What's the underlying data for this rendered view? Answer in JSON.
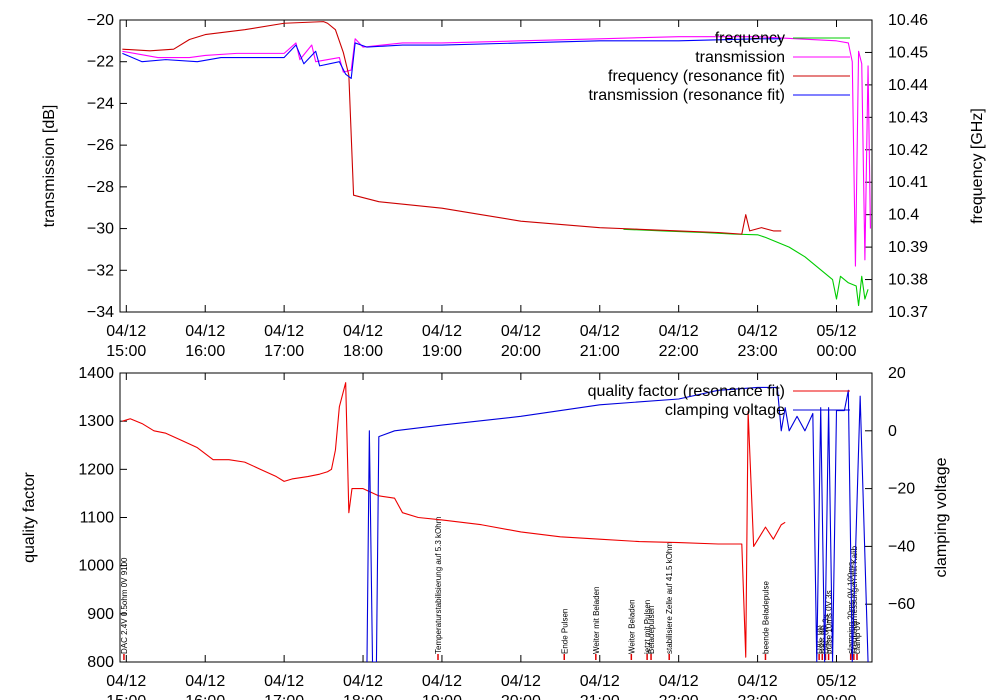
{
  "colors": {
    "frequency": "#00cc00",
    "transmission": "#ff00ff",
    "frequency_fit": "#cc0000",
    "transmission_fit": "#0000ff",
    "quality_fit": "#ee0000",
    "clamping": "#0000dd",
    "annotation": "#dd0000",
    "frame": "#000000"
  },
  "chart_data": [
    {
      "type": "line",
      "xlabel": "",
      "ylabel": "transmission [dB]",
      "y2label": "frequency [GHz]",
      "ylim": [
        -34,
        -20
      ],
      "y2lim": [
        10.37,
        10.46
      ],
      "xlim_hours": [
        14.92,
        24.45
      ],
      "x_ticks": [
        {
          "hour": 15,
          "label": "04/12",
          "sub": "15:00"
        },
        {
          "hour": 16,
          "label": "04/12",
          "sub": "16:00"
        },
        {
          "hour": 17,
          "label": "04/12",
          "sub": "17:00"
        },
        {
          "hour": 18,
          "label": "04/12",
          "sub": "18:00"
        },
        {
          "hour": 19,
          "label": "04/12",
          "sub": "19:00"
        },
        {
          "hour": 20,
          "label": "04/12",
          "sub": "20:00"
        },
        {
          "hour": 21,
          "label": "04/12",
          "sub": "21:00"
        },
        {
          "hour": 22,
          "label": "04/12",
          "sub": "22:00"
        },
        {
          "hour": 23,
          "label": "04/12",
          "sub": "23:00"
        },
        {
          "hour": 24,
          "label": "05/12",
          "sub": "00:00"
        }
      ],
      "y_ticks": [
        -20,
        -22,
        -24,
        -26,
        -28,
        -30,
        -32,
        -34
      ],
      "y2_ticks": [
        "10.46",
        "10.45",
        "10.44",
        "10.43",
        "10.42",
        "10.41",
        "10.4",
        "10.39",
        "10.38",
        "10.37"
      ],
      "legend": [
        "frequency",
        "transmission",
        "frequency (resonance fit)",
        "transmission (resonance fit)"
      ],
      "series": [
        {
          "name": "frequency",
          "axis": "y2",
          "color_key": "frequency",
          "points": [
            [
              21.3,
              10.3955
            ],
            [
              21.8,
              10.395
            ],
            [
              22.3,
              10.3945
            ],
            [
              22.7,
              10.394
            ],
            [
              23.0,
              10.3938
            ],
            [
              23.1,
              10.393
            ],
            [
              23.2,
              10.392
            ],
            [
              23.4,
              10.39
            ],
            [
              23.6,
              10.387
            ],
            [
              23.8,
              10.383
            ],
            [
              23.95,
              10.38
            ],
            [
              24.0,
              10.374
            ],
            [
              24.05,
              10.381
            ],
            [
              24.15,
              10.379
            ],
            [
              24.25,
              10.378
            ],
            [
              24.28,
              10.372
            ],
            [
              24.32,
              10.381
            ],
            [
              24.36,
              10.374
            ],
            [
              24.4,
              10.377
            ]
          ]
        },
        {
          "name": "transmission",
          "axis": "y",
          "color_key": "transmission",
          "points": [
            [
              14.95,
              -21.5
            ],
            [
              15.4,
              -21.8
            ],
            [
              15.8,
              -21.8
            ],
            [
              16.0,
              -21.7
            ],
            [
              16.4,
              -21.6
            ],
            [
              16.8,
              -21.6
            ],
            [
              17.0,
              -21.6
            ],
            [
              17.15,
              -21.1
            ],
            [
              17.2,
              -21.9
            ],
            [
              17.35,
              -21.2
            ],
            [
              17.4,
              -22.0
            ],
            [
              17.7,
              -21.8
            ],
            [
              17.75,
              -22.5
            ],
            [
              17.85,
              -22.4
            ],
            [
              17.9,
              -20.9
            ],
            [
              18.0,
              -21.3
            ],
            [
              18.5,
              -21.1
            ],
            [
              19.0,
              -21.1
            ],
            [
              20.0,
              -21.0
            ],
            [
              21.0,
              -20.9
            ],
            [
              22.0,
              -20.8
            ],
            [
              23.0,
              -20.8
            ],
            [
              23.5,
              -20.9
            ],
            [
              24.0,
              -21.0
            ],
            [
              24.15,
              -21.1
            ],
            [
              24.2,
              -22.0
            ],
            [
              24.24,
              -31.8
            ],
            [
              24.28,
              -21.5
            ],
            [
              24.32,
              -22.1
            ],
            [
              24.36,
              -31.5
            ],
            [
              24.4,
              -22.2
            ],
            [
              24.43,
              -30.0
            ]
          ]
        },
        {
          "name": "frequency (resonance fit)",
          "axis": "y2",
          "color_key": "frequency_fit",
          "points": [
            [
              14.95,
              10.451
            ],
            [
              15.3,
              10.4505
            ],
            [
              15.6,
              10.451
            ],
            [
              15.8,
              10.454
            ],
            [
              16.0,
              10.4555
            ],
            [
              16.5,
              10.457
            ],
            [
              17.0,
              10.459
            ],
            [
              17.5,
              10.4595
            ],
            [
              17.55,
              10.459
            ],
            [
              17.65,
              10.457
            ],
            [
              17.75,
              10.45
            ],
            [
              17.82,
              10.443
            ],
            [
              17.88,
              10.406
            ],
            [
              18.2,
              10.404
            ],
            [
              18.6,
              10.403
            ],
            [
              19.0,
              10.402
            ],
            [
              19.5,
              10.4
            ],
            [
              20.0,
              10.398
            ],
            [
              20.5,
              10.397
            ],
            [
              21.0,
              10.396
            ],
            [
              21.5,
              10.3955
            ],
            [
              22.0,
              10.395
            ],
            [
              22.5,
              10.3945
            ],
            [
              22.8,
              10.394
            ],
            [
              22.85,
              10.4
            ],
            [
              22.9,
              10.395
            ],
            [
              23.05,
              10.396
            ],
            [
              23.2,
              10.395
            ],
            [
              23.3,
              10.395
            ]
          ]
        },
        {
          "name": "transmission (resonance fit)",
          "axis": "y",
          "color_key": "transmission_fit",
          "points": [
            [
              14.95,
              -21.6
            ],
            [
              15.2,
              -22.0
            ],
            [
              15.5,
              -21.9
            ],
            [
              15.9,
              -22.0
            ],
            [
              16.2,
              -21.8
            ],
            [
              16.5,
              -21.8
            ],
            [
              16.8,
              -21.8
            ],
            [
              17.0,
              -21.8
            ],
            [
              17.15,
              -21.2
            ],
            [
              17.25,
              -22.1
            ],
            [
              17.4,
              -21.5
            ],
            [
              17.45,
              -22.2
            ],
            [
              17.7,
              -22.0
            ],
            [
              17.78,
              -22.6
            ],
            [
              17.85,
              -22.8
            ],
            [
              17.9,
              -21.1
            ],
            [
              18.05,
              -21.3
            ],
            [
              18.5,
              -21.2
            ],
            [
              19.0,
              -21.2
            ],
            [
              20.0,
              -21.1
            ],
            [
              21.0,
              -21.0
            ],
            [
              22.0,
              -21.0
            ],
            [
              23.0,
              -20.9
            ],
            [
              23.3,
              -20.9
            ]
          ]
        }
      ]
    },
    {
      "type": "line",
      "xlabel": "",
      "ylabel": "quality factor",
      "y2label": "clamping voltage",
      "ylim": [
        800,
        1400
      ],
      "y2lim": [
        -80,
        20
      ],
      "xlim_hours": [
        14.92,
        24.45
      ],
      "x_ticks": [
        {
          "hour": 15,
          "label": "04/12",
          "sub": "15:00"
        },
        {
          "hour": 16,
          "label": "04/12",
          "sub": "16:00"
        },
        {
          "hour": 17,
          "label": "04/12",
          "sub": "17:00"
        },
        {
          "hour": 18,
          "label": "04/12",
          "sub": "18:00"
        },
        {
          "hour": 19,
          "label": "04/12",
          "sub": "19:00"
        },
        {
          "hour": 20,
          "label": "04/12",
          "sub": "20:00"
        },
        {
          "hour": 21,
          "label": "04/12",
          "sub": "21:00"
        },
        {
          "hour": 22,
          "label": "04/12",
          "sub": "22:00"
        },
        {
          "hour": 23,
          "label": "04/12",
          "sub": "23:00"
        },
        {
          "hour": 24,
          "label": "05/12",
          "sub": "00:00"
        }
      ],
      "y_ticks": [
        1400,
        1300,
        1200,
        1100,
        1000,
        900,
        800
      ],
      "y2_ticks": [
        20,
        0,
        -20,
        -40,
        -60
      ],
      "legend": [
        "quality factor (resonance fit)",
        "clamping voltage"
      ],
      "series": [
        {
          "name": "quality factor (resonance fit)",
          "axis": "y",
          "color_key": "quality_fit",
          "points": [
            [
              14.95,
              1300
            ],
            [
              15.05,
              1305
            ],
            [
              15.2,
              1295
            ],
            [
              15.35,
              1280
            ],
            [
              15.5,
              1275
            ],
            [
              15.7,
              1260
            ],
            [
              15.9,
              1245
            ],
            [
              16.1,
              1220
            ],
            [
              16.3,
              1220
            ],
            [
              16.5,
              1215
            ],
            [
              16.7,
              1200
            ],
            [
              16.9,
              1185
            ],
            [
              17.0,
              1175
            ],
            [
              17.1,
              1180
            ],
            [
              17.3,
              1185
            ],
            [
              17.45,
              1190
            ],
            [
              17.55,
              1195
            ],
            [
              17.6,
              1200
            ],
            [
              17.65,
              1240
            ],
            [
              17.7,
              1330
            ],
            [
              17.78,
              1380
            ],
            [
              17.82,
              1110
            ],
            [
              17.86,
              1160
            ],
            [
              18.0,
              1160
            ],
            [
              18.2,
              1145
            ],
            [
              18.4,
              1140
            ],
            [
              18.5,
              1110
            ],
            [
              18.7,
              1100
            ],
            [
              19.0,
              1095
            ],
            [
              19.5,
              1085
            ],
            [
              20.0,
              1070
            ],
            [
              20.5,
              1060
            ],
            [
              21.0,
              1055
            ],
            [
              21.5,
              1050
            ],
            [
              22.0,
              1048
            ],
            [
              22.5,
              1045
            ],
            [
              22.8,
              1045
            ],
            [
              22.85,
              810
            ],
            [
              22.88,
              1320
            ],
            [
              22.95,
              1040
            ],
            [
              23.1,
              1080
            ],
            [
              23.2,
              1055
            ],
            [
              23.3,
              1085
            ],
            [
              23.35,
              1090
            ]
          ]
        },
        {
          "name": "clamping voltage",
          "axis": "y2",
          "color_key": "clamping",
          "points": [
            [
              18.05,
              -80
            ],
            [
              18.08,
              0
            ],
            [
              18.12,
              -80
            ],
            [
              18.17,
              -80
            ],
            [
              18.2,
              -2
            ],
            [
              18.4,
              0
            ],
            [
              19.0,
              2
            ],
            [
              20.0,
              5
            ],
            [
              21.0,
              9
            ],
            [
              22.0,
              11
            ],
            [
              22.5,
              14
            ],
            [
              23.0,
              15
            ],
            [
              23.25,
              15
            ],
            [
              23.3,
              0
            ],
            [
              23.35,
              8
            ],
            [
              23.4,
              0
            ],
            [
              23.5,
              5
            ],
            [
              23.6,
              0
            ],
            [
              23.7,
              6
            ],
            [
              23.75,
              -80
            ],
            [
              23.8,
              8
            ],
            [
              23.85,
              -80
            ],
            [
              23.9,
              8
            ],
            [
              23.95,
              -80
            ],
            [
              24.0,
              7
            ],
            [
              24.1,
              7
            ],
            [
              24.15,
              14
            ],
            [
              24.2,
              -80
            ],
            [
              24.3,
              12
            ],
            [
              24.4,
              -80
            ]
          ]
        }
      ],
      "annotations": [
        {
          "hour": 14.97,
          "text": "DAC 2.4V 0.5ohm 0V 9100"
        },
        {
          "hour": 18.95,
          "text": "Temperaturstabilisierung auf 5.3 kOhm"
        },
        {
          "hour": 20.55,
          "text": "Ende Pulsen"
        },
        {
          "hour": 20.95,
          "text": "Weiter mit Beladen"
        },
        {
          "hour": 21.4,
          "text": "Weiter Beladen"
        },
        {
          "hour": 21.6,
          "text": "jetzt mit Pulsen"
        },
        {
          "hour": 21.65,
          "text": "Beladepulsen"
        },
        {
          "hour": 21.88,
          "text": "stabilisiere Zelle auf 41.5 kOhm"
        },
        {
          "hour": 23.1,
          "text": "beende Beladepulse"
        },
        {
          "hour": 23.78,
          "text": "DAC 0V"
        },
        {
          "hour": 23.82,
          "text": "DAC 0V"
        },
        {
          "hour": 23.86,
          "text": "DAC 0V 3s"
        },
        {
          "hour": 23.9,
          "text": "pulse 10ms 0V 3s"
        },
        {
          "hour": 24.18,
          "text": "clamping 20ms 0V 100ms"
        },
        {
          "hour": 24.22,
          "text": "Frequenzmessungen mit Kalib"
        },
        {
          "hour": 24.26,
          "text": "clamp 0V"
        }
      ]
    }
  ]
}
